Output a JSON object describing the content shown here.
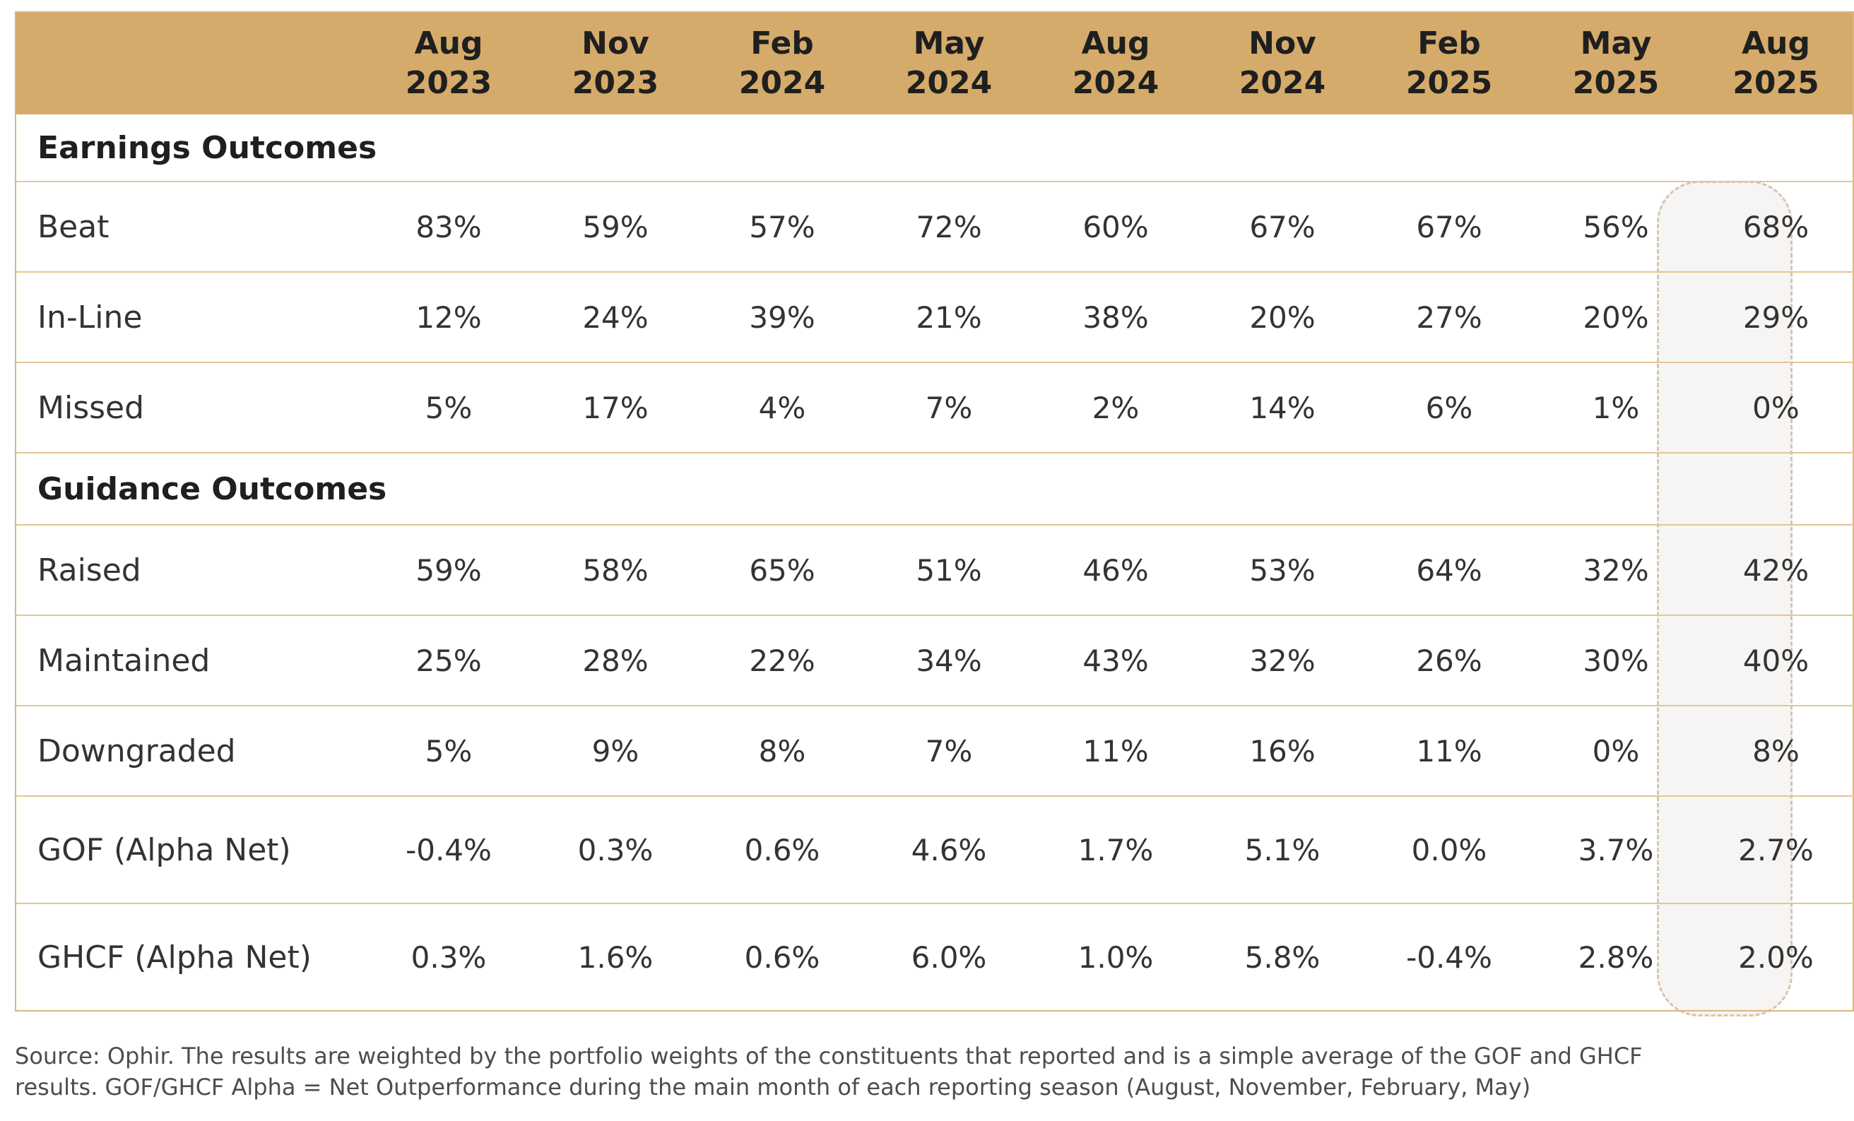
{
  "table": {
    "columns": [
      {
        "month": "Aug",
        "year": "2023"
      },
      {
        "month": "Nov",
        "year": "2023"
      },
      {
        "month": "Feb",
        "year": "2024"
      },
      {
        "month": "May",
        "year": "2024"
      },
      {
        "month": "Aug",
        "year": "2024"
      },
      {
        "month": "Nov",
        "year": "2024"
      },
      {
        "month": "Feb",
        "year": "2025"
      },
      {
        "month": "May",
        "year": "2025"
      },
      {
        "month": "Aug",
        "year": "2025"
      }
    ],
    "earnings_section": "Earnings Outcomes",
    "guidance_section": "Guidance Outcomes",
    "earnings_rows": [
      {
        "label": "Beat",
        "values": [
          "83%",
          "59%",
          "57%",
          "72%",
          "60%",
          "67%",
          "67%",
          "56%",
          "68%"
        ]
      },
      {
        "label": "In-Line",
        "values": [
          "12%",
          "24%",
          "39%",
          "21%",
          "38%",
          "20%",
          "27%",
          "20%",
          "29%"
        ]
      },
      {
        "label": "Missed",
        "values": [
          "5%",
          "17%",
          "4%",
          "7%",
          "2%",
          "14%",
          "6%",
          "1%",
          "0%"
        ]
      }
    ],
    "guidance_rows": [
      {
        "label": "Raised",
        "values": [
          "59%",
          "58%",
          "65%",
          "51%",
          "46%",
          "53%",
          "64%",
          "32%",
          "42%"
        ]
      },
      {
        "label": "Maintained",
        "values": [
          "25%",
          "28%",
          "22%",
          "34%",
          "43%",
          "32%",
          "26%",
          "30%",
          "40%"
        ]
      },
      {
        "label": "Downgraded",
        "values": [
          "5%",
          "9%",
          "8%",
          "7%",
          "11%",
          "16%",
          "11%",
          "0%",
          "8%"
        ]
      }
    ],
    "alpha_rows": [
      {
        "label": "GOF (Alpha Net)",
        "values": [
          "-0.4%",
          "0.3%",
          "0.6%",
          "4.6%",
          "1.7%",
          "5.1%",
          "0.0%",
          "3.7%",
          "2.7%"
        ]
      },
      {
        "label": "GHCF (Alpha Net)",
        "values": [
          "0.3%",
          "1.6%",
          "0.6%",
          "6.0%",
          "1.0%",
          "5.8%",
          "-0.4%",
          "2.8%",
          "2.0%"
        ]
      }
    ]
  },
  "footnote": {
    "line1": "Source: Ophir. The results are weighted by the portfolio weights of the constituents that reported and is a simple average of the GOF and GHCF",
    "line2": "results. GOF/GHCF Alpha = Net Outperformance during the main month of each reporting season (August, November, February, May)"
  },
  "colors": {
    "header_bg": "#d5ab6b",
    "row_rule": "#e2c693",
    "highlight_fill": "#f7f5f3",
    "highlight_border": "#d4c6b2"
  }
}
